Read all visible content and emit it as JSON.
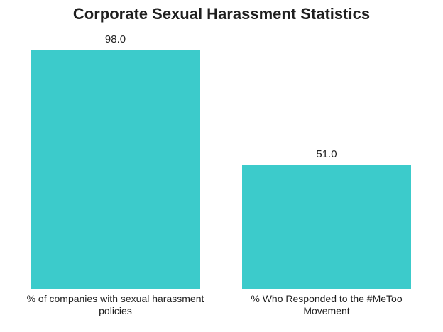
{
  "chart_data": {
    "type": "bar",
    "title": "Corporate Sexual Harassment Statistics",
    "categories": [
      "% of companies with sexual harassment policies",
      "% Who Responded to the #MeToo Movement"
    ],
    "values": [
      98.0,
      51.0
    ],
    "value_labels": [
      "98.0",
      "51.0"
    ],
    "bar_color": "#3CCBCB",
    "text_color": "#1F1F1F",
    "background_color": "#FFFFFF",
    "xlabel": "",
    "ylabel": "",
    "ylim": [
      0,
      98
    ],
    "grid": false,
    "legend": false,
    "data_labels_position": "above-bar"
  }
}
